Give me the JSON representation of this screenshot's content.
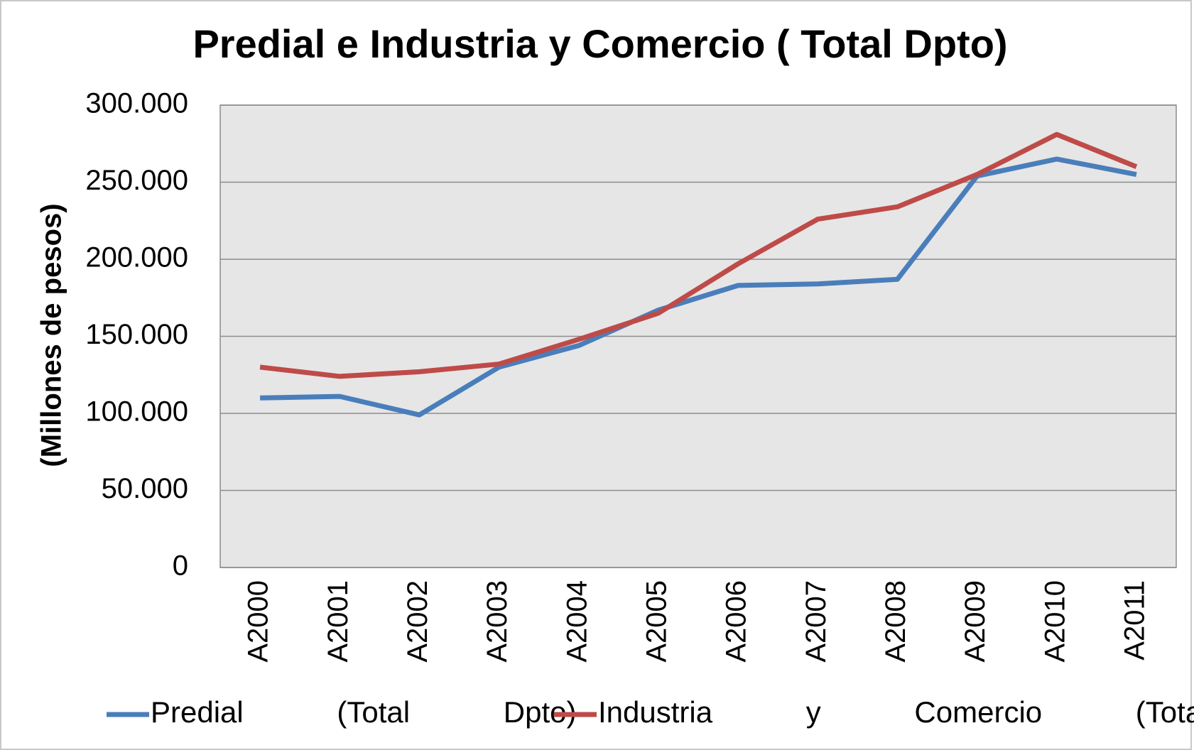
{
  "chart_data": {
    "type": "line",
    "title": "Predial e Industria y Comercio ( Total Dpto)",
    "y_label": "(Millones de pesos)",
    "categories": [
      "A2000",
      "A2001",
      "A2002",
      "A2003",
      "A2004",
      "A2005",
      "A2006",
      "A2007",
      "A2008",
      "A2009",
      "A2010",
      "A2011"
    ],
    "series": [
      {
        "name": "Predial (Total Dpto)",
        "color": "#4a7ebb",
        "values": [
          110000,
          111000,
          99000,
          130000,
          144000,
          167000,
          183000,
          184000,
          187000,
          254000,
          265000,
          255000
        ]
      },
      {
        "name": "Industria y Comercio (Total Dpto)",
        "color": "#be4b48",
        "values": [
          130000,
          124000,
          127000,
          132000,
          148000,
          165000,
          197000,
          226000,
          234000,
          255000,
          281000,
          260000
        ]
      }
    ],
    "ylim": [
      0,
      300000
    ],
    "yticks": [
      0,
      {
        "value": 50000,
        "label": "50.000"
      },
      {
        "value": 100000,
        "label": "100.000"
      },
      {
        "value": 150000,
        "label": "150.000"
      },
      {
        "value": 200000,
        "label": "200.000"
      },
      {
        "value": 250000,
        "label": "250.000"
      },
      {
        "value": 300000,
        "label": "300.000"
      }
    ],
    "grid": true,
    "legend": "bottom"
  }
}
